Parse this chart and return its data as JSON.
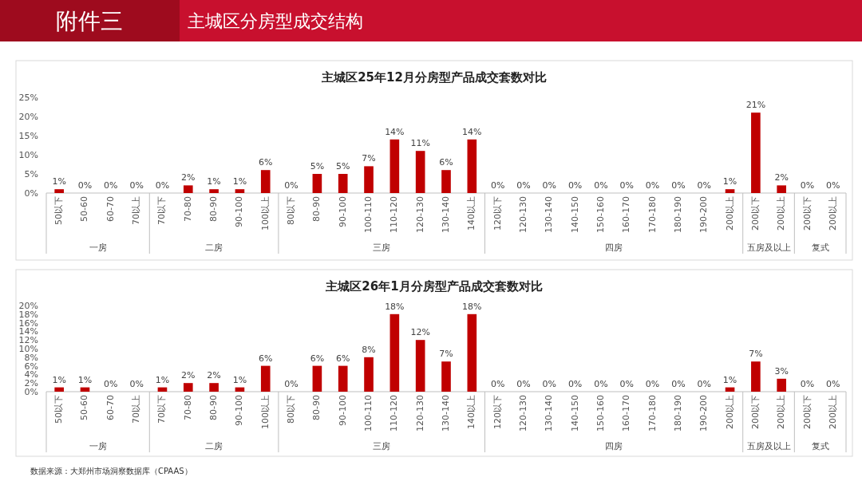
{
  "chart_data": [
    {
      "type": "other",
      "title": "主城区分房型成交结构",
      "annotations": [
        "附件三"
      ]
    },
    {
      "type": "bar",
      "title": "主城区25年12月分房型产品成交套数对比",
      "color": "#c00000",
      "categories": [
        "50以下",
        "50-60",
        "60-70",
        "70以上",
        "70以下",
        "70-80",
        "80-90",
        "90-100",
        "100以上",
        "80以下",
        "80-90",
        "90-100",
        "100-110",
        "110-120",
        "120-130",
        "130-140",
        "140以上",
        "120以下",
        "120-130",
        "130-140",
        "140-150",
        "150-160",
        "160-170",
        "170-180",
        "180-190",
        "190-200",
        "200以上",
        "200以下",
        "200以上",
        "200以下",
        "200以上"
      ],
      "values": [
        1,
        0,
        0,
        0,
        0,
        2,
        1,
        1,
        6,
        0,
        5,
        5,
        7,
        14,
        11,
        6,
        14,
        0,
        0,
        0,
        0,
        0,
        0,
        0,
        0,
        0,
        1,
        21,
        2,
        0,
        0
      ],
      "value_labels": [
        "1%",
        "0%",
        "0%",
        "0%",
        "0%",
        "2%",
        "1%",
        "1%",
        "6%",
        "0%",
        "5%",
        "5%",
        "7%",
        "14%",
        "11%",
        "6%",
        "14%",
        "0%",
        "0%",
        "0%",
        "0%",
        "0%",
        "0%",
        "0%",
        "0%",
        "0%",
        "1%",
        "21%",
        "2%",
        "0%",
        "0%"
      ],
      "ylim": [
        0,
        25
      ],
      "yticks": [
        {
          "value": 0,
          "label": "0%"
        },
        {
          "value": 5,
          "label": "5%"
        },
        {
          "value": 10,
          "label": "10%"
        },
        {
          "value": 15,
          "label": "15%"
        },
        {
          "value": 20,
          "label": "20%"
        },
        {
          "value": 25,
          "label": "25%"
        }
      ],
      "annotations": [
        "一房",
        "二房",
        "三房",
        "四房",
        "五房及以上",
        "复式"
      ]
    },
    {
      "type": "bar",
      "title": "主城区26年1月分房型产品成交套数对比",
      "color": "#c00000",
      "categories": [
        "50以下",
        "50-60",
        "60-70",
        "70以上",
        "70以下",
        "70-80",
        "80-90",
        "90-100",
        "100以上",
        "80以下",
        "80-90",
        "90-100",
        "100-110",
        "110-120",
        "120-130",
        "130-140",
        "140以上",
        "120以下",
        "120-130",
        "130-140",
        "140-150",
        "150-160",
        "160-170",
        "170-180",
        "180-190",
        "190-200",
        "200以上",
        "200以下",
        "200以上",
        "200以下",
        "200以上"
      ],
      "values": [
        1,
        1,
        0,
        0,
        1,
        2,
        2,
        1,
        6,
        0,
        6,
        6,
        8,
        18,
        12,
        7,
        18,
        0,
        0,
        0,
        0,
        0,
        0,
        0,
        0,
        0,
        1,
        7,
        3,
        0,
        0
      ],
      "value_labels": [
        "1%",
        "1%",
        "0%",
        "0%",
        "1%",
        "2%",
        "2%",
        "1%",
        "6%",
        "0%",
        "6%",
        "6%",
        "8%",
        "18%",
        "12%",
        "7%",
        "18%",
        "0%",
        "0%",
        "0%",
        "0%",
        "0%",
        "0%",
        "0%",
        "0%",
        "0%",
        "1%",
        "7%",
        "3%",
        "0%",
        "0%"
      ],
      "ylim": [
        0,
        20
      ],
      "yticks": [
        {
          "value": 0,
          "label": "0%"
        },
        {
          "value": 2,
          "label": "2%"
        },
        {
          "value": 4,
          "label": "4%"
        },
        {
          "value": 6,
          "label": "6%"
        },
        {
          "value": 8,
          "label": "8%"
        },
        {
          "value": 10,
          "label": "10%"
        },
        {
          "value": 12,
          "label": "12%"
        },
        {
          "value": 14,
          "label": "14%"
        },
        {
          "value": 16,
          "label": "16%"
        },
        {
          "value": 18,
          "label": "18%"
        },
        {
          "value": 20,
          "label": "20%"
        }
      ],
      "annotations": [
        "一房",
        "二房",
        "三房",
        "四房",
        "五房及以上",
        "复式",
        "数据来源：大郑州市场洞察数据库（CPAAS）"
      ]
    }
  ]
}
